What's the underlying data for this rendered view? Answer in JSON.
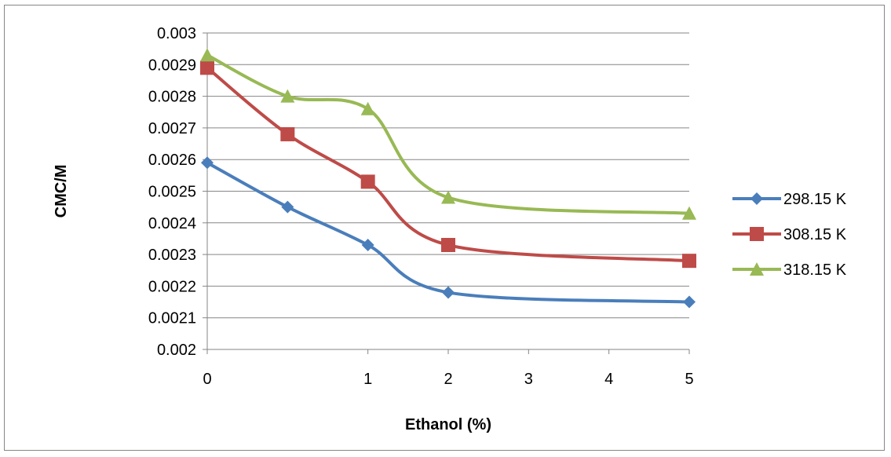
{
  "chart_data": {
    "type": "line",
    "title": "",
    "xlabel": "Ethanol (%)",
    "ylabel": "CMC/M",
    "categories": [
      "0",
      "0.5",
      "1",
      "2",
      "3",
      "4",
      "5"
    ],
    "x_tick_labels": [
      "0",
      "1",
      "2",
      "3",
      "4",
      "5"
    ],
    "ylim": [
      0.002,
      0.003
    ],
    "y_tick_labels": [
      "0.002",
      "0.0021",
      "0.0022",
      "0.0023",
      "0.0024",
      "0.0025",
      "0.0026",
      "0.0027",
      "0.0028",
      "0.0029",
      "0.003"
    ],
    "grid": true,
    "legend_position": "right",
    "series": [
      {
        "name": "298.15 K",
        "color": "#4a7ebb",
        "marker": "diamond",
        "points": [
          {
            "category": "0",
            "y": 0.00259
          },
          {
            "category": "0.5",
            "y": 0.00245
          },
          {
            "category": "1",
            "y": 0.00233
          },
          {
            "category": "2",
            "y": 0.00218
          },
          {
            "category": "5",
            "y": 0.00215
          }
        ]
      },
      {
        "name": "308.15 K",
        "color": "#be4b48",
        "marker": "square",
        "points": [
          {
            "category": "0",
            "y": 0.00289
          },
          {
            "category": "0.5",
            "y": 0.00268
          },
          {
            "category": "1",
            "y": 0.00253
          },
          {
            "category": "2",
            "y": 0.00233
          },
          {
            "category": "5",
            "y": 0.00228
          }
        ]
      },
      {
        "name": "318.15 K",
        "color": "#98b954",
        "marker": "triangle",
        "points": [
          {
            "category": "0",
            "y": 0.00293
          },
          {
            "category": "0.5",
            "y": 0.0028
          },
          {
            "category": "1",
            "y": 0.00276
          },
          {
            "category": "2",
            "y": 0.00248
          },
          {
            "category": "5",
            "y": 0.00243
          }
        ]
      }
    ]
  }
}
